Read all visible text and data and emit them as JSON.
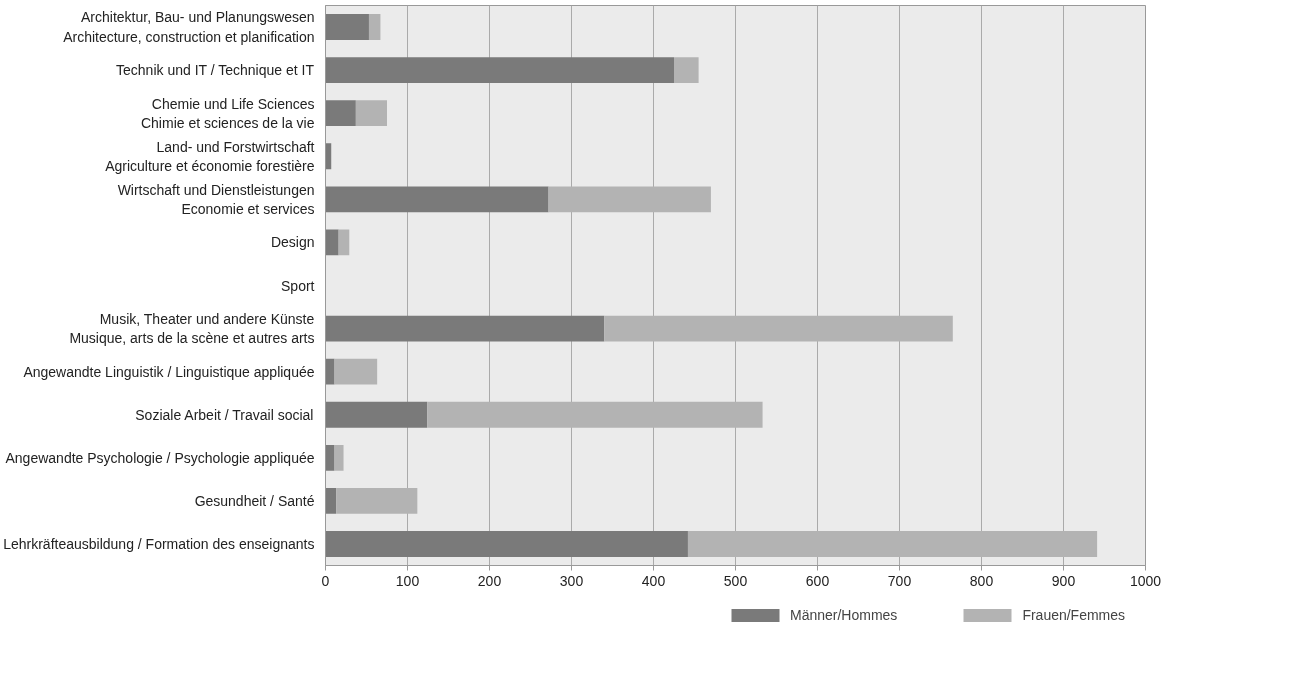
{
  "chart_data": {
    "type": "bar",
    "orientation": "horizontal",
    "stacked": true,
    "categories": [
      "Architektur, Bau- und Planungswesen\nArchitecture, construction et planification",
      "Technik und IT / Technique et IT",
      "Chemie und Life Sciences\nChimie et sciences de la vie",
      "Land- und Forstwirtschaft\nAgriculture et économie forestière",
      "Wirtschaft und Dienstleistungen\nEconomie et services",
      "Design",
      "Sport",
      "Musik, Theater und andere Künste\nMusique, arts de la scène et autres arts",
      "Angewandte Linguistik / Linguistique appliquée",
      "Soziale Arbeit / Travail social",
      "Angewandte Psychologie / Psychologie appliquée",
      "Gesundheit / Santé",
      "Lehrkräfteausbildung / Formation des enseignants"
    ],
    "series": [
      {
        "name": "Männer/Hommes",
        "color": "#7a7a7a",
        "values": [
          53,
          425,
          37,
          7,
          272,
          16,
          0,
          340,
          11,
          124,
          11,
          13,
          442
        ]
      },
      {
        "name": "Frauen/Femmes",
        "color": "#b3b3b3",
        "values": [
          14,
          30,
          38,
          0,
          198,
          13,
          0,
          425,
          52,
          409,
          11,
          99,
          499
        ]
      }
    ],
    "xlim": [
      0,
      1000
    ],
    "xticks": [
      0,
      100,
      200,
      300,
      400,
      500,
      600,
      700,
      800,
      900,
      1000
    ],
    "grid": "x",
    "legend": "bottom"
  }
}
